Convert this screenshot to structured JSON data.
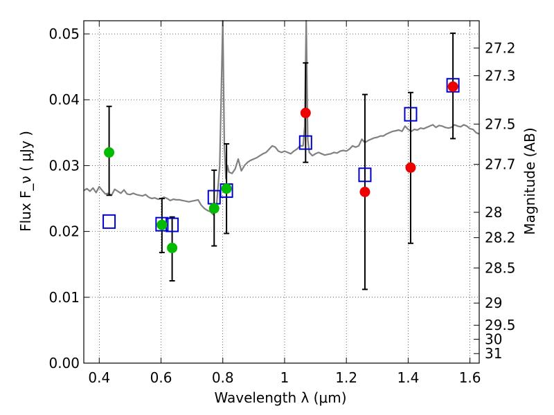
{
  "chart_data": {
    "type": "scatter",
    "xlabel": "Wavelength  λ (μm)",
    "ylabel_left": "Flux  F_ν  ( μJy )",
    "ylabel_right": "Magnitude (AB)",
    "xlim": [
      0.35,
      1.63
    ],
    "ylim": [
      0.0,
      0.052
    ],
    "grid": true,
    "legend": "none",
    "x_ticks": [
      {
        "value": 0.4,
        "label": "0.4"
      },
      {
        "value": 0.6,
        "label": "0.6"
      },
      {
        "value": 0.8,
        "label": "0.8"
      },
      {
        "value": 1.0,
        "label": "1"
      },
      {
        "value": 1.2,
        "label": "1.2"
      },
      {
        "value": 1.4,
        "label": "1.4"
      },
      {
        "value": 1.6,
        "label": "1.6"
      }
    ],
    "y_ticks": [
      {
        "value": 0.0,
        "label": "0.00"
      },
      {
        "value": 0.01,
        "label": "0.01"
      },
      {
        "value": 0.02,
        "label": "0.02"
      },
      {
        "value": 0.03,
        "label": "0.03"
      },
      {
        "value": 0.04,
        "label": "0.04"
      },
      {
        "value": 0.05,
        "label": "0.05"
      }
    ],
    "mag_ticks": [
      {
        "label": "27.2",
        "mag": 27.2
      },
      {
        "label": "27.3",
        "mag": 27.3
      },
      {
        "label": "27.5",
        "mag": 27.5
      },
      {
        "label": "27.7",
        "mag": 27.7
      },
      {
        "label": "28",
        "mag": 28.0
      },
      {
        "label": "28.2",
        "mag": 28.2
      },
      {
        "label": "28.5",
        "mag": 28.5
      },
      {
        "label": "29",
        "mag": 29.0
      },
      {
        "label": "29.5",
        "mag": 29.5
      },
      {
        "label": "30",
        "mag": 30.0
      },
      {
        "label": "31",
        "mag": 31.0
      }
    ],
    "colors": {
      "template": "#808080",
      "green": "#00bb00",
      "red": "#ee0000",
      "model": "#0000cc",
      "errorbar": "#000000"
    },
    "template_spectrum": {
      "color": "#808080",
      "x": [
        0.35,
        0.36,
        0.37,
        0.38,
        0.39,
        0.4,
        0.41,
        0.42,
        0.43,
        0.44,
        0.45,
        0.46,
        0.47,
        0.48,
        0.49,
        0.5,
        0.51,
        0.52,
        0.53,
        0.54,
        0.55,
        0.56,
        0.57,
        0.58,
        0.59,
        0.6,
        0.61,
        0.62,
        0.63,
        0.64,
        0.65,
        0.66,
        0.67,
        0.68,
        0.69,
        0.7,
        0.71,
        0.72,
        0.73,
        0.74,
        0.75,
        0.76,
        0.77,
        0.78,
        0.79,
        0.8,
        0.805,
        0.81,
        0.815,
        0.82,
        0.83,
        0.84,
        0.85,
        0.86,
        0.87,
        0.88,
        0.89,
        0.9,
        0.91,
        0.92,
        0.93,
        0.94,
        0.95,
        0.96,
        0.97,
        0.98,
        0.99,
        1.0,
        1.01,
        1.02,
        1.03,
        1.04,
        1.05,
        1.06,
        1.065,
        1.07,
        1.075,
        1.08,
        1.09,
        1.1,
        1.11,
        1.12,
        1.13,
        1.14,
        1.15,
        1.16,
        1.17,
        1.18,
        1.19,
        1.2,
        1.21,
        1.22,
        1.23,
        1.24,
        1.25,
        1.26,
        1.27,
        1.28,
        1.29,
        1.3,
        1.31,
        1.32,
        1.33,
        1.34,
        1.35,
        1.36,
        1.37,
        1.38,
        1.39,
        1.4,
        1.41,
        1.42,
        1.43,
        1.44,
        1.45,
        1.46,
        1.47,
        1.48,
        1.49,
        1.5,
        1.51,
        1.52,
        1.53,
        1.54,
        1.55,
        1.56,
        1.57,
        1.58,
        1.59,
        1.6,
        1.61,
        1.62,
        1.63
      ],
      "y": [
        0.0262,
        0.0265,
        0.0261,
        0.0266,
        0.0259,
        0.0268,
        0.0262,
        0.0257,
        0.0258,
        0.0255,
        0.0264,
        0.0261,
        0.0258,
        0.0263,
        0.0257,
        0.0256,
        0.0258,
        0.0256,
        0.0255,
        0.0254,
        0.0256,
        0.0252,
        0.025,
        0.0251,
        0.0249,
        0.025,
        0.0252,
        0.025,
        0.0247,
        0.0249,
        0.0248,
        0.0248,
        0.0247,
        0.0246,
        0.0245,
        0.0246,
        0.0247,
        0.0248,
        0.024,
        0.0235,
        0.0232,
        0.023,
        0.0225,
        0.024,
        0.03,
        0.052,
        0.033,
        0.028,
        0.03,
        0.029,
        0.0288,
        0.0295,
        0.031,
        0.0292,
        0.03,
        0.0305,
        0.0308,
        0.031,
        0.0312,
        0.0315,
        0.0318,
        0.032,
        0.0325,
        0.033,
        0.0328,
        0.0322,
        0.032,
        0.0322,
        0.032,
        0.0318,
        0.0322,
        0.0325,
        0.033,
        0.033,
        0.036,
        0.052,
        0.034,
        0.032,
        0.0315,
        0.0318,
        0.032,
        0.0318,
        0.0316,
        0.0317,
        0.0318,
        0.032,
        0.0319,
        0.0322,
        0.0323,
        0.0322,
        0.0325,
        0.033,
        0.0328,
        0.033,
        0.034,
        0.0335,
        0.0338,
        0.034,
        0.0342,
        0.0343,
        0.0345,
        0.0345,
        0.0348,
        0.035,
        0.0352,
        0.0353,
        0.0354,
        0.0352,
        0.036,
        0.0355,
        0.0352,
        0.0355,
        0.0354,
        0.0357,
        0.0356,
        0.0358,
        0.036,
        0.0362,
        0.0358,
        0.0361,
        0.036,
        0.0358,
        0.0357,
        0.0358,
        0.0362,
        0.036,
        0.0359,
        0.0362,
        0.036,
        0.0356,
        0.0355,
        0.035,
        0.0348
      ]
    },
    "green_points": [
      {
        "x": 0.432,
        "y": 0.032,
        "err": [
          0.0255,
          0.039
        ]
      },
      {
        "x": 0.603,
        "y": 0.021,
        "err": [
          0.0168,
          0.025
        ]
      },
      {
        "x": 0.636,
        "y": 0.0175,
        "err": [
          0.0125,
          0.0222
        ]
      },
      {
        "x": 0.772,
        "y": 0.0235,
        "err": [
          0.0178,
          0.0293
        ]
      },
      {
        "x": 0.812,
        "y": 0.0265,
        "err": [
          0.0197,
          0.0333
        ]
      }
    ],
    "red_points": [
      {
        "x": 1.068,
        "y": 0.038,
        "err": [
          0.0305,
          0.0456
        ]
      },
      {
        "x": 1.26,
        "y": 0.026,
        "err": [
          0.0112,
          0.0408
        ]
      },
      {
        "x": 1.408,
        "y": 0.0297,
        "err": [
          0.0182,
          0.0411
        ]
      },
      {
        "x": 1.545,
        "y": 0.042,
        "err": [
          0.0341,
          0.0501
        ]
      }
    ],
    "model_points": [
      {
        "x": 0.432,
        "y": 0.0215
      },
      {
        "x": 0.603,
        "y": 0.0211
      },
      {
        "x": 0.636,
        "y": 0.021
      },
      {
        "x": 0.772,
        "y": 0.0252
      },
      {
        "x": 0.812,
        "y": 0.0262
      },
      {
        "x": 1.068,
        "y": 0.0335
      },
      {
        "x": 1.26,
        "y": 0.0286
      },
      {
        "x": 1.408,
        "y": 0.0378
      },
      {
        "x": 1.545,
        "y": 0.0422
      }
    ]
  }
}
